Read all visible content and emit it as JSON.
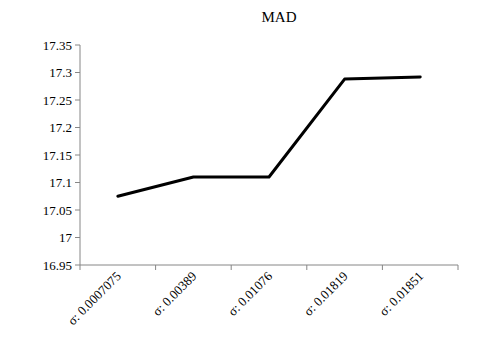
{
  "chart_data": {
    "type": "line",
    "title": "MAD",
    "categories": [
      "σ: 0.0007075",
      "σ: 0.00389",
      "σ: 0.01076",
      "σ: 0.01819",
      "σ: 0.01851"
    ],
    "values": [
      17.075,
      17.11,
      17.11,
      17.288,
      17.292
    ],
    "color": "#000000",
    "ylim": [
      16.95,
      17.35
    ],
    "yticks": [
      16.95,
      17,
      17.05,
      17.1,
      17.15,
      17.2,
      17.25,
      17.3,
      17.35
    ],
    "grid": false
  }
}
